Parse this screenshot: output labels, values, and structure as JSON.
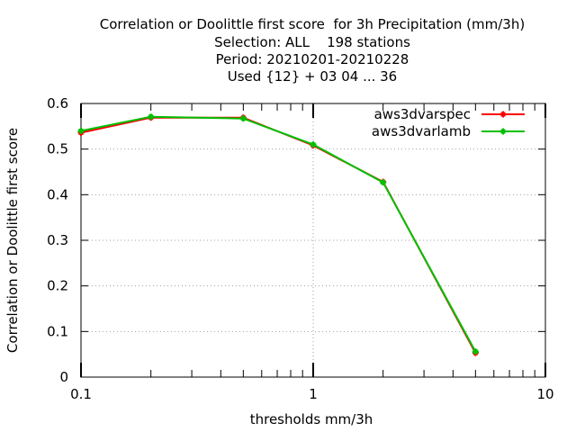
{
  "chart_data": {
    "type": "line",
    "title_lines": [
      "Correlation or Doolittle first score  for 3h Precipitation (mm/3h)",
      "Selection: ALL    198 stations",
      "Period: 20210201-20210228",
      "Used {12} + 03 04 ... 36"
    ],
    "xlabel": "thresholds mm/3h",
    "ylabel": "Correlation or Doolittle first score",
    "x_scale": "log",
    "xlim": [
      0.1,
      10
    ],
    "ylim": [
      0,
      0.6
    ],
    "x_ticks": [
      {
        "value": 0.1,
        "label": "0.1"
      },
      {
        "value": 1,
        "label": "1"
      },
      {
        "value": 10,
        "label": "10"
      }
    ],
    "y_ticks": [
      {
        "value": 0,
        "label": "0"
      },
      {
        "value": 0.1,
        "label": "0.1"
      },
      {
        "value": 0.2,
        "label": "0.2"
      },
      {
        "value": 0.3,
        "label": "0.3"
      },
      {
        "value": 0.4,
        "label": "0.4"
      },
      {
        "value": 0.5,
        "label": "0.5"
      },
      {
        "value": 0.6,
        "label": "0.6"
      }
    ],
    "grid": true,
    "legend_position": "top-right",
    "x": [
      0.1,
      0.2,
      0.5,
      1,
      2,
      5
    ],
    "series": [
      {
        "name": "aws3dvarspec",
        "color": "#ff0000",
        "values": [
          0.536,
          0.569,
          0.569,
          0.508,
          0.428,
          0.053
        ]
      },
      {
        "name": "aws3dvarlamb",
        "color": "#00c000",
        "values": [
          0.54,
          0.571,
          0.567,
          0.51,
          0.427,
          0.056
        ]
      }
    ]
  }
}
